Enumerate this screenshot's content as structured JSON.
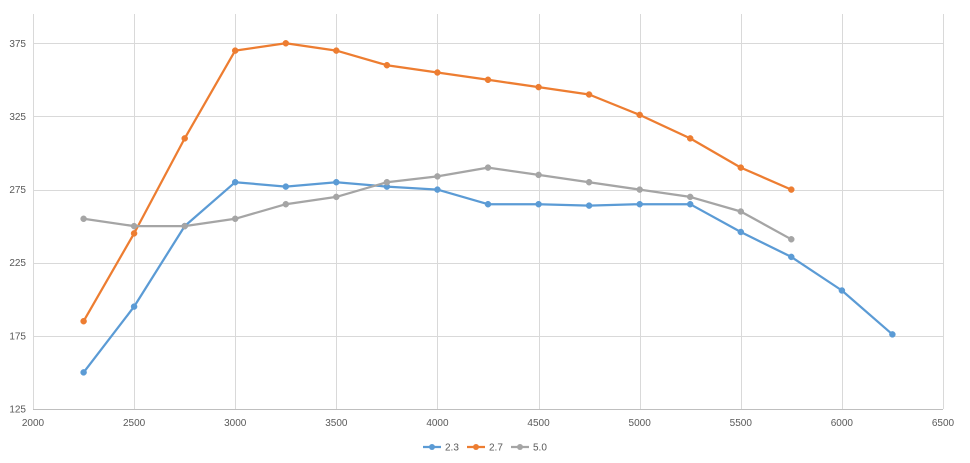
{
  "chart_data": {
    "type": "line",
    "title": "",
    "xlabel": "",
    "ylabel": "",
    "xlim": [
      2000,
      6500
    ],
    "ylim": [
      125,
      395
    ],
    "xticks": [
      2000,
      2500,
      3000,
      3500,
      4000,
      4500,
      5000,
      5500,
      6000,
      6500
    ],
    "yticks": [
      125,
      175,
      225,
      275,
      325,
      375
    ],
    "grid": true,
    "legend": "bottom",
    "colors": {
      "2.3": "#5b9bd5",
      "2.7": "#ed7d31",
      "5.0": "#a5a5a5"
    },
    "series": [
      {
        "name": "2.3",
        "color": "#5b9bd5",
        "x": [
          2250,
          2500,
          2750,
          3000,
          3250,
          3500,
          3750,
          4000,
          4250,
          4500,
          4750,
          5000,
          5250,
          5500,
          5750,
          6000,
          6250
        ],
        "values": [
          150,
          195,
          250,
          280,
          277,
          280,
          277,
          275,
          265,
          265,
          264,
          265,
          265,
          246,
          229,
          206,
          176
        ]
      },
      {
        "name": "2.7",
        "color": "#ed7d31",
        "x": [
          2250,
          2500,
          2750,
          3000,
          3250,
          3500,
          3750,
          4000,
          4250,
          4500,
          4750,
          5000,
          5250,
          5500,
          5750
        ],
        "values": [
          185,
          245,
          310,
          370,
          375,
          370,
          360,
          355,
          350,
          345,
          340,
          326,
          310,
          290,
          275
        ]
      },
      {
        "name": "5.0",
        "color": "#a5a5a5",
        "x": [
          2250,
          2500,
          2750,
          3000,
          3250,
          3500,
          3750,
          4000,
          4250,
          4500,
          4750,
          5000,
          5250,
          5500,
          5750
        ],
        "values": [
          255,
          250,
          250,
          255,
          265,
          270,
          280,
          284,
          290,
          285,
          280,
          275,
          270,
          260,
          241
        ]
      }
    ]
  }
}
